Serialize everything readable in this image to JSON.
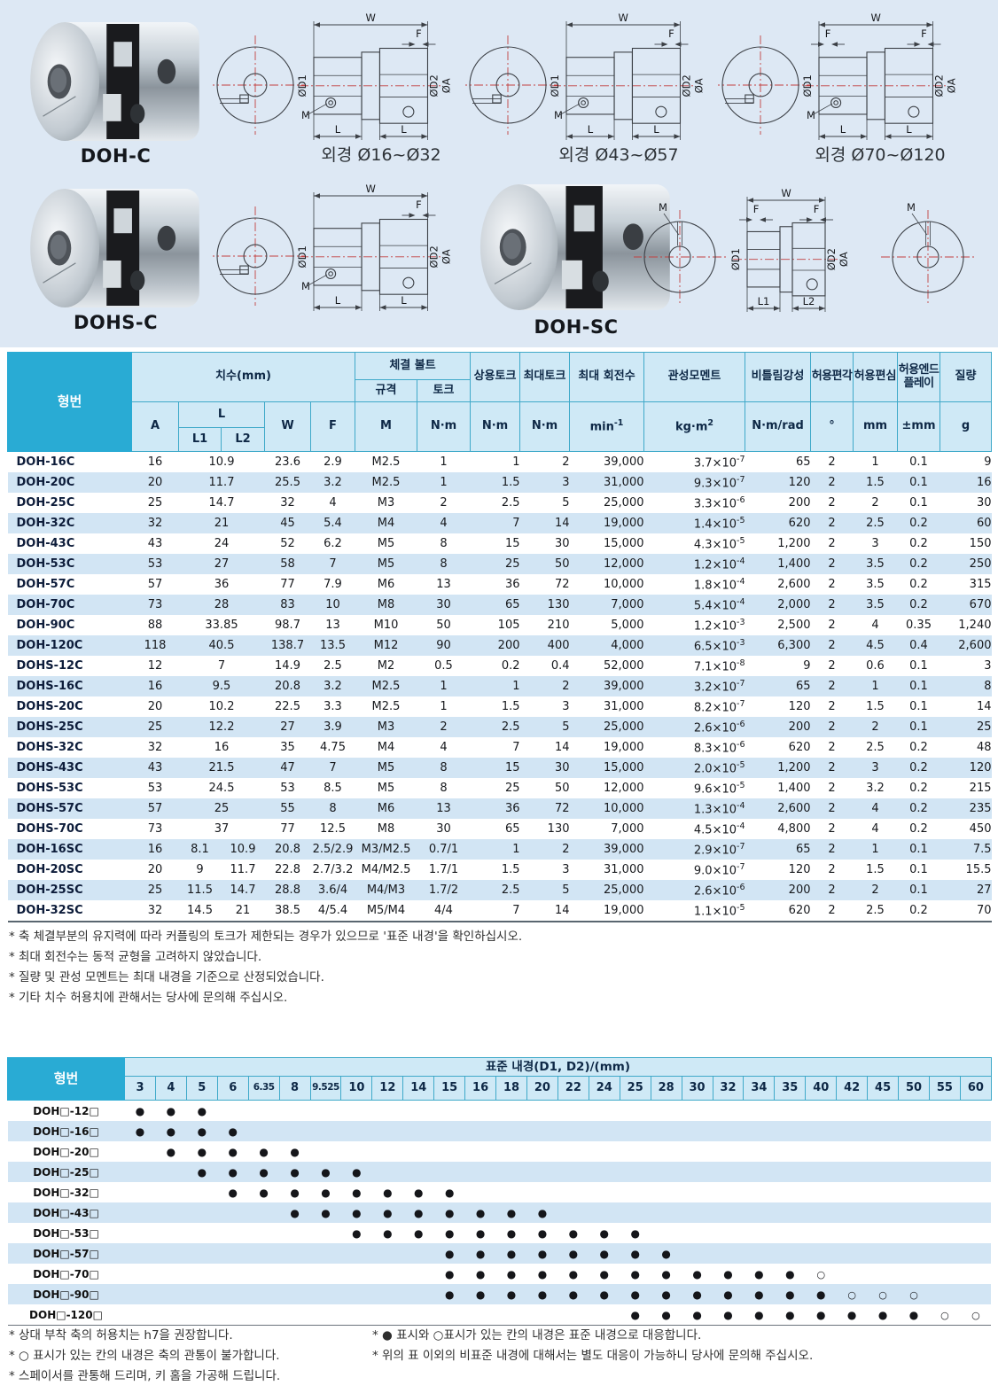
{
  "top": {
    "products": [
      {
        "label": "DOH-C"
      },
      {
        "label": "DOHS-C"
      },
      {
        "label": "DOH-SC"
      }
    ],
    "captions": [
      "외경 Ø16~Ø32",
      "외경 Ø43~Ø57",
      "외경 Ø70~Ø120"
    ],
    "dim_labels": {
      "w": "W",
      "f": "F",
      "d1": "ØD1",
      "d2": "ØD2",
      "a": "ØA",
      "m": "M",
      "l": "L",
      "l1": "L1",
      "l2": "L2"
    }
  },
  "main_table": {
    "headers": {
      "model": "형번",
      "dims": "치수(mm)",
      "bolt": "체결 볼트",
      "spec": "규격",
      "torque": "토크",
      "a": "A",
      "l": "L",
      "l1": "L1",
      "l2": "L2",
      "w": "W",
      "f": "F",
      "m": "M",
      "rated": "상용토크",
      "max": "최대토크",
      "speed": "최대 회전수",
      "inertia": "관성모멘트",
      "stiffness": "비틀림강성",
      "angle": "허용편각",
      "parallel": "허용편심",
      "endplay": "허용엔드플레이",
      "mass": "질량"
    },
    "units": {
      "nm": "N·m",
      "speed": "min^-1",
      "inertia": "kg·m^2",
      "stiffness": "N·m/rad",
      "angle": "°",
      "mm": "mm",
      "endplay": "±mm",
      "mass": "g"
    },
    "rows": [
      {
        "model": "DOH-16C",
        "a": "16",
        "l1": "10.9",
        "l2": null,
        "w": "23.6",
        "f": "2.9",
        "m": "M2.5",
        "tq": "1",
        "rated": "1",
        "max": "2",
        "speed": "39,000",
        "inertia": "3.7×10^-7",
        "stiff": "65",
        "ang": "2",
        "par": "1",
        "end": "0.1",
        "mass": "9"
      },
      {
        "model": "DOH-20C",
        "a": "20",
        "l1": "11.7",
        "l2": null,
        "w": "25.5",
        "f": "3.2",
        "m": "M2.5",
        "tq": "1",
        "rated": "1.5",
        "max": "3",
        "speed": "31,000",
        "inertia": "9.3×10^-7",
        "stiff": "120",
        "ang": "2",
        "par": "1.5",
        "end": "0.1",
        "mass": "16"
      },
      {
        "model": "DOH-25C",
        "a": "25",
        "l1": "14.7",
        "l2": null,
        "w": "32",
        "f": "4",
        "m": "M3",
        "tq": "2",
        "rated": "2.5",
        "max": "5",
        "speed": "25,000",
        "inertia": "3.3×10^-6",
        "stiff": "200",
        "ang": "2",
        "par": "2",
        "end": "0.1",
        "mass": "30"
      },
      {
        "model": "DOH-32C",
        "a": "32",
        "l1": "21",
        "l2": null,
        "w": "45",
        "f": "5.4",
        "m": "M4",
        "tq": "4",
        "rated": "7",
        "max": "14",
        "speed": "19,000",
        "inertia": "1.4×10^-5",
        "stiff": "620",
        "ang": "2",
        "par": "2.5",
        "end": "0.2",
        "mass": "60"
      },
      {
        "model": "DOH-43C",
        "a": "43",
        "l1": "24",
        "l2": null,
        "w": "52",
        "f": "6.2",
        "m": "M5",
        "tq": "8",
        "rated": "15",
        "max": "30",
        "speed": "15,000",
        "inertia": "4.3×10^-5",
        "stiff": "1,200",
        "ang": "2",
        "par": "3",
        "end": "0.2",
        "mass": "150"
      },
      {
        "model": "DOH-53C",
        "a": "53",
        "l1": "27",
        "l2": null,
        "w": "58",
        "f": "7",
        "m": "M5",
        "tq": "8",
        "rated": "25",
        "max": "50",
        "speed": "12,000",
        "inertia": "1.2×10^-4",
        "stiff": "1,400",
        "ang": "2",
        "par": "3.5",
        "end": "0.2",
        "mass": "250"
      },
      {
        "model": "DOH-57C",
        "a": "57",
        "l1": "36",
        "l2": null,
        "w": "77",
        "f": "7.9",
        "m": "M6",
        "tq": "13",
        "rated": "36",
        "max": "72",
        "speed": "10,000",
        "inertia": "1.8×10^-4",
        "stiff": "2,600",
        "ang": "2",
        "par": "3.5",
        "end": "0.2",
        "mass": "315"
      },
      {
        "model": "DOH-70C",
        "a": "73",
        "l1": "28",
        "l2": null,
        "w": "83",
        "f": "10",
        "m": "M8",
        "tq": "30",
        "rated": "65",
        "max": "130",
        "speed": "7,000",
        "inertia": "5.4×10^-4",
        "stiff": "2,000",
        "ang": "2",
        "par": "3.5",
        "end": "0.2",
        "mass": "670"
      },
      {
        "model": "DOH-90C",
        "a": "88",
        "l1": "33.85",
        "l2": null,
        "w": "98.7",
        "f": "13",
        "m": "M10",
        "tq": "50",
        "rated": "105",
        "max": "210",
        "speed": "5,000",
        "inertia": "1.2×10^-3",
        "stiff": "2,500",
        "ang": "2",
        "par": "4",
        "end": "0.35",
        "mass": "1,240"
      },
      {
        "model": "DOH-120C",
        "a": "118",
        "l1": "40.5",
        "l2": null,
        "w": "138.7",
        "f": "13.5",
        "m": "M12",
        "tq": "90",
        "rated": "200",
        "max": "400",
        "speed": "4,000",
        "inertia": "6.5×10^-3",
        "stiff": "6,300",
        "ang": "2",
        "par": "4.5",
        "end": "0.4",
        "mass": "2,600"
      },
      {
        "model": "DOHS-12C",
        "a": "12",
        "l1": "7",
        "l2": null,
        "w": "14.9",
        "f": "2.5",
        "m": "M2",
        "tq": "0.5",
        "rated": "0.2",
        "max": "0.4",
        "speed": "52,000",
        "inertia": "7.1×10^-8",
        "stiff": "9",
        "ang": "2",
        "par": "0.6",
        "end": "0.1",
        "mass": "3"
      },
      {
        "model": "DOHS-16C",
        "a": "16",
        "l1": "9.5",
        "l2": null,
        "w": "20.8",
        "f": "3.2",
        "m": "M2.5",
        "tq": "1",
        "rated": "1",
        "max": "2",
        "speed": "39,000",
        "inertia": "3.2×10^-7",
        "stiff": "65",
        "ang": "2",
        "par": "1",
        "end": "0.1",
        "mass": "8"
      },
      {
        "model": "DOHS-20C",
        "a": "20",
        "l1": "10.2",
        "l2": null,
        "w": "22.5",
        "f": "3.3",
        "m": "M2.5",
        "tq": "1",
        "rated": "1.5",
        "max": "3",
        "speed": "31,000",
        "inertia": "8.2×10^-7",
        "stiff": "120",
        "ang": "2",
        "par": "1.5",
        "end": "0.1",
        "mass": "14"
      },
      {
        "model": "DOHS-25C",
        "a": "25",
        "l1": "12.2",
        "l2": null,
        "w": "27",
        "f": "3.9",
        "m": "M3",
        "tq": "2",
        "rated": "2.5",
        "max": "5",
        "speed": "25,000",
        "inertia": "2.6×10^-6",
        "stiff": "200",
        "ang": "2",
        "par": "2",
        "end": "0.1",
        "mass": "25"
      },
      {
        "model": "DOHS-32C",
        "a": "32",
        "l1": "16",
        "l2": null,
        "w": "35",
        "f": "4.75",
        "m": "M4",
        "tq": "4",
        "rated": "7",
        "max": "14",
        "speed": "19,000",
        "inertia": "8.3×10^-6",
        "stiff": "620",
        "ang": "2",
        "par": "2.5",
        "end": "0.2",
        "mass": "48"
      },
      {
        "model": "DOHS-43C",
        "a": "43",
        "l1": "21.5",
        "l2": null,
        "w": "47",
        "f": "7",
        "m": "M5",
        "tq": "8",
        "rated": "15",
        "max": "30",
        "speed": "15,000",
        "inertia": "2.0×10^-5",
        "stiff": "1,200",
        "ang": "2",
        "par": "3",
        "end": "0.2",
        "mass": "120"
      },
      {
        "model": "DOHS-53C",
        "a": "53",
        "l1": "24.5",
        "l2": null,
        "w": "53",
        "f": "8.5",
        "m": "M5",
        "tq": "8",
        "rated": "25",
        "max": "50",
        "speed": "12,000",
        "inertia": "9.6×10^-5",
        "stiff": "1,400",
        "ang": "2",
        "par": "3.2",
        "end": "0.2",
        "mass": "215"
      },
      {
        "model": "DOHS-57C",
        "a": "57",
        "l1": "25",
        "l2": null,
        "w": "55",
        "f": "8",
        "m": "M6",
        "tq": "13",
        "rated": "36",
        "max": "72",
        "speed": "10,000",
        "inertia": "1.3×10^-4",
        "stiff": "2,600",
        "ang": "2",
        "par": "4",
        "end": "0.2",
        "mass": "235"
      },
      {
        "model": "DOHS-70C",
        "a": "73",
        "l1": "37",
        "l2": null,
        "w": "77",
        "f": "12.5",
        "m": "M8",
        "tq": "30",
        "rated": "65",
        "max": "130",
        "speed": "7,000",
        "inertia": "4.5×10^-4",
        "stiff": "4,800",
        "ang": "2",
        "par": "4",
        "end": "0.2",
        "mass": "450"
      },
      {
        "model": "DOH-16SC",
        "a": "16",
        "l1": "8.1",
        "l2": "10.9",
        "w": "20.8",
        "f": "2.5/2.9",
        "m": "M3/M2.5",
        "tq": "0.7/1",
        "rated": "1",
        "max": "2",
        "speed": "39,000",
        "inertia": "2.9×10^-7",
        "stiff": "65",
        "ang": "2",
        "par": "1",
        "end": "0.1",
        "mass": "7.5"
      },
      {
        "model": "DOH-20SC",
        "a": "20",
        "l1": "9",
        "l2": "11.7",
        "w": "22.8",
        "f": "2.7/3.2",
        "m": "M4/M2.5",
        "tq": "1.7/1",
        "rated": "1.5",
        "max": "3",
        "speed": "31,000",
        "inertia": "9.0×10^-7",
        "stiff": "120",
        "ang": "2",
        "par": "1.5",
        "end": "0.1",
        "mass": "15.5"
      },
      {
        "model": "DOH-25SC",
        "a": "25",
        "l1": "11.5",
        "l2": "14.7",
        "w": "28.8",
        "f": "3.6/4",
        "m": "M4/M3",
        "tq": "1.7/2",
        "rated": "2.5",
        "max": "5",
        "speed": "25,000",
        "inertia": "2.6×10^-6",
        "stiff": "200",
        "ang": "2",
        "par": "2",
        "end": "0.1",
        "mass": "27"
      },
      {
        "model": "DOH-32SC",
        "a": "32",
        "l1": "14.5",
        "l2": "21",
        "w": "38.5",
        "f": "4/5.4",
        "m": "M5/M4",
        "tq": "4/4",
        "rated": "7",
        "max": "14",
        "speed": "19,000",
        "inertia": "1.1×10^-5",
        "stiff": "620",
        "ang": "2",
        "par": "2.5",
        "end": "0.2",
        "mass": "70"
      }
    ]
  },
  "main_notes": [
    "* 축 체결부분의 유지력에 따라 커플링의 토크가 제한되는 경우가 있으므로 '표준 내경'을 확인하십시오.",
    "* 최대 회전수는 동적 균형을 고려하지 않았습니다.",
    "* 질량 및 관성 모멘트는 최대 내경을 기준으로 산정되었습니다.",
    "* 기타 치수 허용치에 관해서는 당사에 문의해 주십시오."
  ],
  "bore_table": {
    "model_header": "형번",
    "title": "표준 내경(D1, D2)/(mm)",
    "columns": [
      "3",
      "4",
      "5",
      "6",
      "6.35",
      "8",
      "9.525",
      "10",
      "12",
      "14",
      "15",
      "16",
      "18",
      "20",
      "22",
      "24",
      "25",
      "28",
      "30",
      "32",
      "34",
      "35",
      "40",
      "42",
      "45",
      "50",
      "55",
      "60"
    ],
    "legend": {
      "filled": "●",
      "open": "○"
    },
    "rows": [
      {
        "model": "DOH□-12□",
        "filled": [
          "3",
          "4",
          "5"
        ],
        "open": []
      },
      {
        "model": "DOH□-16□",
        "filled": [
          "3",
          "4",
          "5",
          "6"
        ],
        "open": []
      },
      {
        "model": "DOH□-20□",
        "filled": [
          "4",
          "5",
          "6",
          "6.35",
          "8"
        ],
        "open": []
      },
      {
        "model": "DOH□-25□",
        "filled": [
          "5",
          "6",
          "6.35",
          "8",
          "9.525",
          "10"
        ],
        "open": []
      },
      {
        "model": "DOH□-32□",
        "filled": [
          "6",
          "6.35",
          "8",
          "9.525",
          "10",
          "12",
          "14",
          "15"
        ],
        "open": []
      },
      {
        "model": "DOH□-43□",
        "filled": [
          "8",
          "9.525",
          "10",
          "12",
          "14",
          "15",
          "16",
          "18",
          "20"
        ],
        "open": []
      },
      {
        "model": "DOH□-53□",
        "filled": [
          "10",
          "12",
          "14",
          "15",
          "16",
          "18",
          "20",
          "22",
          "24",
          "25"
        ],
        "open": []
      },
      {
        "model": "DOH□-57□",
        "filled": [
          "15",
          "16",
          "18",
          "20",
          "22",
          "24",
          "25",
          "28"
        ],
        "open": []
      },
      {
        "model": "DOH□-70□",
        "filled": [
          "15",
          "16",
          "18",
          "20",
          "22",
          "24",
          "25",
          "28",
          "30",
          "32",
          "34",
          "35"
        ],
        "open": [
          "40"
        ]
      },
      {
        "model": "DOH□-90□",
        "filled": [
          "15",
          "16",
          "18",
          "20",
          "22",
          "24",
          "25",
          "28",
          "30",
          "32",
          "34",
          "35",
          "40"
        ],
        "open": [
          "42",
          "45",
          "50"
        ]
      },
      {
        "model": "DOH□-120□",
        "filled": [
          "25",
          "28",
          "30",
          "32",
          "34",
          "35",
          "40",
          "42",
          "45",
          "50"
        ],
        "open": [
          "55",
          "60"
        ]
      }
    ]
  },
  "bore_notes_left": [
    "* 상대 부착 축의 허용치는 h7을 권장합니다.",
    "* ○ 표시가 있는 칸의 내경은 축의 관통이 불가합니다.",
    "* 스페이서를 관통해 드리며, 키 홈을 가공해 드립니다."
  ],
  "bore_notes_right": [
    "* ● 표시와 ○표시가 있는 칸의 내경은 표준 내경으로 대응합니다.",
    "* 위의 표 이외의 비표준 내경에 대해서는 별도 대응이 가능하니 당사에 문의해 주십시오."
  ],
  "colors": {
    "accent_cyan": "#29abd4",
    "header_bg": "#cfe9f6",
    "stripe": "#d2e5f4",
    "grid_teal": "#3fa9c9",
    "top_bg": "#dde8f4",
    "centerline_red": "#c24040"
  }
}
